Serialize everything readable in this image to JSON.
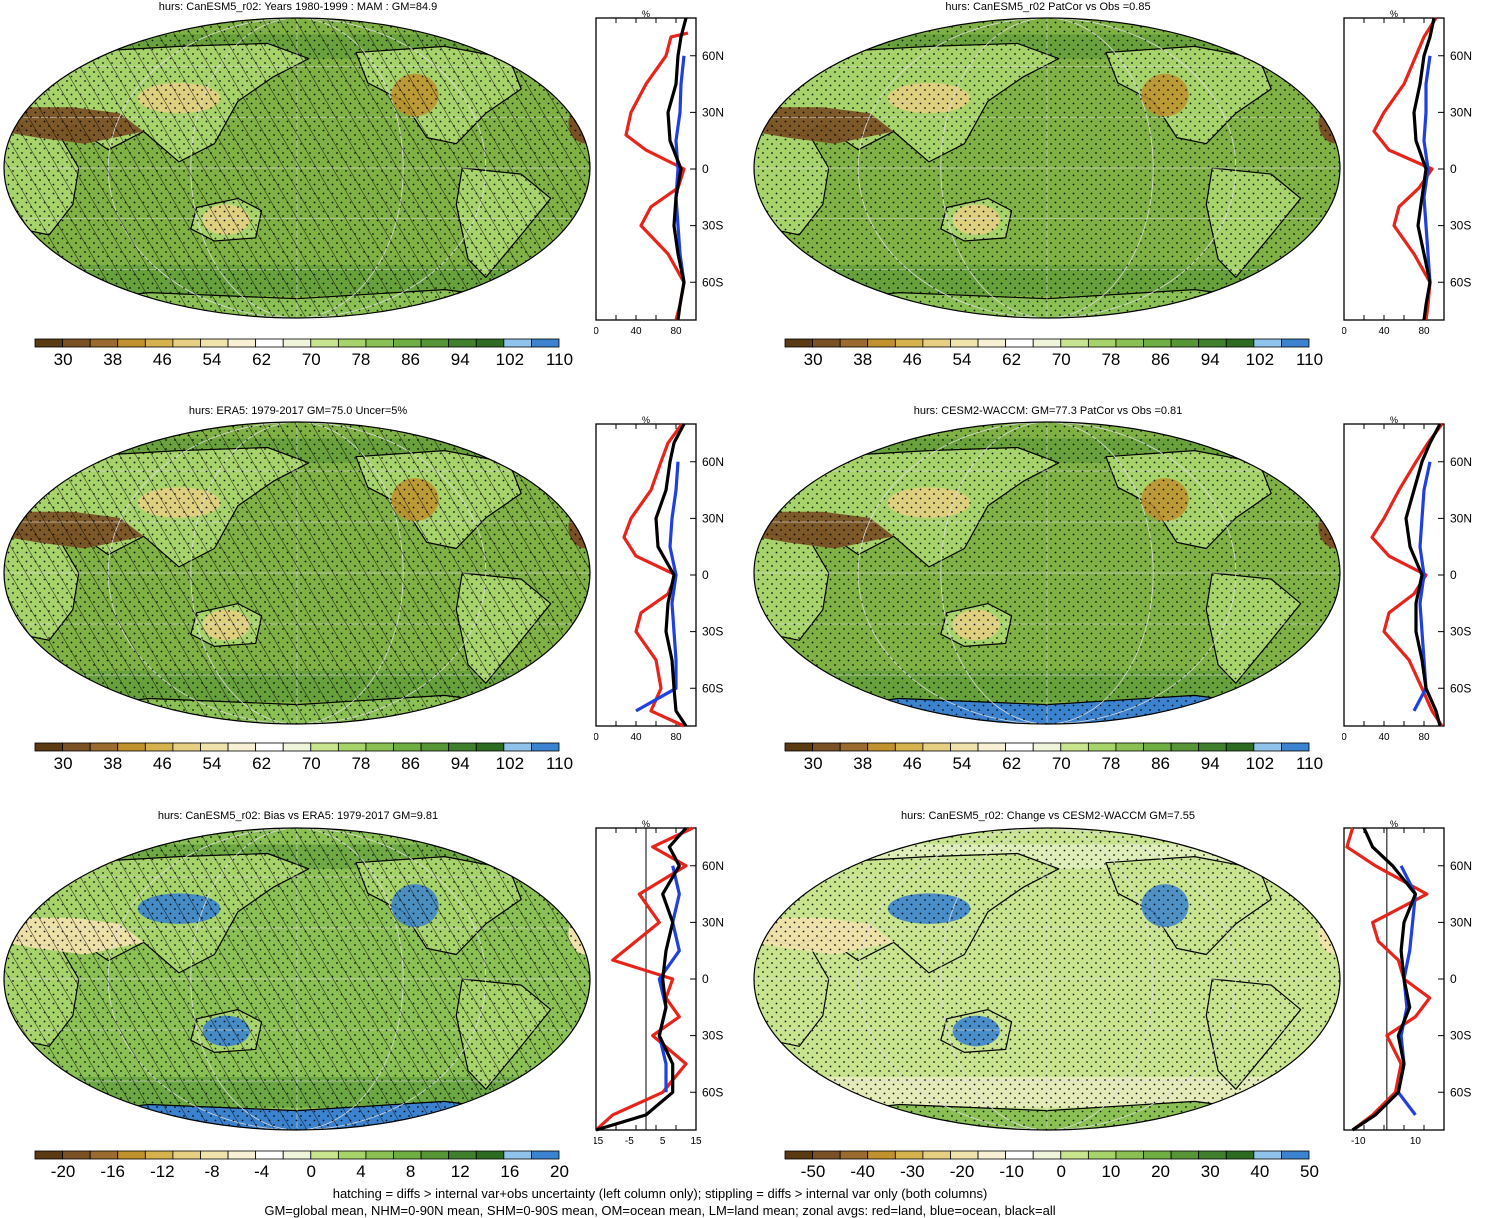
{
  "palette_rh": [
    "#5a3a13",
    "#7a5125",
    "#9a6a2e",
    "#c0912d",
    "#d6b24f",
    "#e6cf83",
    "#f0e2ab",
    "#f7f0d4",
    "#ffffff",
    "#eef5da",
    "#c9e48f",
    "#a7d36b",
    "#8bc154",
    "#6fae43",
    "#579637",
    "#40802c",
    "#2d6a22",
    "#8fc3ec",
    "#3b83cf"
  ],
  "palette_diff": [
    "#5a3a13",
    "#7a5125",
    "#9a6a2e",
    "#c0912d",
    "#d6b24f",
    "#e6cf83",
    "#f0e2ab",
    "#f7f0d4",
    "#ffffff",
    "#eef5da",
    "#c9e48f",
    "#a7d36b",
    "#8bc154",
    "#6fae43",
    "#579637",
    "#40802c",
    "#2d6a22",
    "#8fc3ec",
    "#3b83cf"
  ],
  "colors": {
    "land": "#e8241a",
    "ocean": "#1f3fe0",
    "all": "#000000",
    "ocean_fill": "#7fb144",
    "desert": "#7a5125",
    "ice": "#4d93d6"
  },
  "zonal_axis": {
    "unit": "%",
    "lat_labels": [
      "60N",
      "30N",
      "0",
      "30S",
      "60S"
    ]
  },
  "panels": [
    {
      "id": "p1",
      "title": "hurs: CanESM5_r02: Years 1980-1999 : MAM : GM=84.9",
      "hatch": true,
      "stipple": true,
      "style": "clim",
      "cbar_labels": [
        "30",
        "38",
        "46",
        "54",
        "62",
        "70",
        "78",
        "86",
        "94",
        "102",
        "110"
      ],
      "zonal_ticks": [
        "0",
        "40",
        "80"
      ],
      "zonal_range": [
        0,
        100
      ],
      "land": [
        [
          72,
          92
        ],
        [
          70,
          75
        ],
        [
          60,
          70
        ],
        [
          45,
          50
        ],
        [
          30,
          35
        ],
        [
          18,
          30
        ],
        [
          10,
          50
        ],
        [
          0,
          88
        ],
        [
          -10,
          82
        ],
        [
          -20,
          55
        ],
        [
          -30,
          45
        ],
        [
          -45,
          72
        ],
        [
          -60,
          88
        ],
        [
          -72,
          84
        ],
        [
          -80,
          80
        ]
      ],
      "ocean": [
        [
          60,
          88
        ],
        [
          45,
          85
        ],
        [
          30,
          84
        ],
        [
          15,
          80
        ],
        [
          0,
          82
        ],
        [
          -15,
          80
        ],
        [
          -30,
          82
        ],
        [
          -45,
          84
        ],
        [
          -60,
          88
        ]
      ],
      "all": [
        [
          80,
          90
        ],
        [
          70,
          85
        ],
        [
          60,
          82
        ],
        [
          45,
          80
        ],
        [
          30,
          72
        ],
        [
          15,
          74
        ],
        [
          0,
          85
        ],
        [
          -15,
          80
        ],
        [
          -30,
          78
        ],
        [
          -45,
          82
        ],
        [
          -60,
          88
        ],
        [
          -72,
          84
        ],
        [
          -80,
          82
        ]
      ]
    },
    {
      "id": "p2",
      "title": "hurs: CanESM5_r02 PatCor vs Obs =0.85",
      "hatch": false,
      "stipple": true,
      "style": "clim",
      "cbar_labels": [
        "30",
        "38",
        "46",
        "54",
        "62",
        "70",
        "78",
        "86",
        "94",
        "102",
        "110"
      ],
      "zonal_ticks": [
        "0",
        "40",
        "80"
      ],
      "zonal_range": [
        0,
        100
      ],
      "land": [
        [
          80,
          92
        ],
        [
          70,
          80
        ],
        [
          60,
          72
        ],
        [
          45,
          60
        ],
        [
          30,
          40
        ],
        [
          20,
          30
        ],
        [
          10,
          45
        ],
        [
          0,
          88
        ],
        [
          -10,
          75
        ],
        [
          -20,
          55
        ],
        [
          -30,
          50
        ],
        [
          -45,
          70
        ],
        [
          -60,
          86
        ],
        [
          -72,
          84
        ],
        [
          -80,
          82
        ]
      ],
      "ocean": [
        [
          60,
          86
        ],
        [
          45,
          82
        ],
        [
          30,
          82
        ],
        [
          15,
          80
        ],
        [
          0,
          84
        ],
        [
          -15,
          80
        ],
        [
          -30,
          82
        ],
        [
          -45,
          84
        ],
        [
          -60,
          86
        ]
      ],
      "all": [
        [
          80,
          90
        ],
        [
          70,
          86
        ],
        [
          60,
          80
        ],
        [
          45,
          76
        ],
        [
          30,
          70
        ],
        [
          15,
          72
        ],
        [
          0,
          82
        ],
        [
          -15,
          78
        ],
        [
          -30,
          74
        ],
        [
          -45,
          80
        ],
        [
          -60,
          86
        ],
        [
          -72,
          82
        ],
        [
          -80,
          80
        ]
      ]
    },
    {
      "id": "p3",
      "title": "hurs: ERA5: 1979-2017 GM=75.0 Uncer=5%",
      "hatch": true,
      "stipple": true,
      "style": "clim",
      "cbar_labels": [
        "30",
        "38",
        "46",
        "54",
        "62",
        "70",
        "78",
        "86",
        "94",
        "102",
        "110"
      ],
      "zonal_ticks": [
        "0",
        "40",
        "80"
      ],
      "zonal_range": [
        0,
        100
      ],
      "land": [
        [
          80,
          86
        ],
        [
          70,
          72
        ],
        [
          60,
          65
        ],
        [
          45,
          55
        ],
        [
          30,
          35
        ],
        [
          20,
          28
        ],
        [
          10,
          40
        ],
        [
          0,
          80
        ],
        [
          -10,
          72
        ],
        [
          -20,
          45
        ],
        [
          -30,
          40
        ],
        [
          -45,
          60
        ],
        [
          -60,
          65
        ],
        [
          -72,
          55
        ],
        [
          -80,
          88
        ]
      ],
      "ocean": [
        [
          60,
          82
        ],
        [
          45,
          80
        ],
        [
          30,
          76
        ],
        [
          15,
          74
        ],
        [
          0,
          80
        ],
        [
          -15,
          76
        ],
        [
          -30,
          78
        ],
        [
          -45,
          80
        ],
        [
          -60,
          80
        ],
        [
          -72,
          40
        ]
      ],
      "all": [
        [
          80,
          88
        ],
        [
          70,
          78
        ],
        [
          60,
          74
        ],
        [
          45,
          70
        ],
        [
          30,
          60
        ],
        [
          15,
          62
        ],
        [
          0,
          78
        ],
        [
          -15,
          72
        ],
        [
          -30,
          70
        ],
        [
          -45,
          76
        ],
        [
          -60,
          78
        ],
        [
          -72,
          80
        ],
        [
          -80,
          90
        ]
      ]
    },
    {
      "id": "p4",
      "title": "hurs: CESM2-WACCM: GM=77.3 PatCor vs Obs =0.81",
      "hatch": false,
      "stipple": true,
      "style": "clim",
      "cbar_labels": [
        "30",
        "38",
        "46",
        "54",
        "62",
        "70",
        "78",
        "86",
        "94",
        "102",
        "110"
      ],
      "zonal_ticks": [
        "0",
        "40",
        "80"
      ],
      "zonal_range": [
        0,
        100
      ],
      "land": [
        [
          80,
          98
        ],
        [
          70,
          84
        ],
        [
          60,
          72
        ],
        [
          45,
          55
        ],
        [
          30,
          40
        ],
        [
          20,
          28
        ],
        [
          10,
          45
        ],
        [
          0,
          82
        ],
        [
          -10,
          70
        ],
        [
          -20,
          45
        ],
        [
          -30,
          40
        ],
        [
          -45,
          65
        ],
        [
          -60,
          78
        ],
        [
          -72,
          88
        ],
        [
          -80,
          98
        ]
      ],
      "ocean": [
        [
          60,
          86
        ],
        [
          45,
          80
        ],
        [
          30,
          78
        ],
        [
          15,
          76
        ],
        [
          0,
          80
        ],
        [
          -15,
          76
        ],
        [
          -30,
          78
        ],
        [
          -45,
          80
        ],
        [
          -60,
          82
        ],
        [
          -72,
          70
        ]
      ],
      "all": [
        [
          80,
          96
        ],
        [
          70,
          86
        ],
        [
          60,
          78
        ],
        [
          45,
          70
        ],
        [
          30,
          62
        ],
        [
          15,
          66
        ],
        [
          0,
          78
        ],
        [
          -15,
          72
        ],
        [
          -30,
          72
        ],
        [
          -45,
          78
        ],
        [
          -60,
          82
        ],
        [
          -72,
          92
        ],
        [
          -80,
          96
        ]
      ]
    },
    {
      "id": "p5",
      "title": "hurs: CanESM5_r02: Bias vs ERA5: 1979-2017 GM=9.81",
      "hatch": true,
      "stipple": true,
      "style": "bias",
      "cbar_labels": [
        "-20",
        "-16",
        "-12",
        "-8",
        "-4",
        "0",
        "4",
        "8",
        "12",
        "16",
        "20"
      ],
      "zonal_ticks": [
        "-15",
        "-5",
        "5",
        "15"
      ],
      "zonal_range": [
        -15,
        15
      ],
      "land": [
        [
          80,
          14
        ],
        [
          70,
          2
        ],
        [
          60,
          12
        ],
        [
          45,
          -2
        ],
        [
          30,
          4
        ],
        [
          20,
          -3
        ],
        [
          10,
          -10
        ],
        [
          0,
          8
        ],
        [
          -10,
          6
        ],
        [
          -20,
          10
        ],
        [
          -30,
          2
        ],
        [
          -45,
          12
        ],
        [
          -60,
          5
        ],
        [
          -72,
          -10
        ],
        [
          -80,
          -15
        ]
      ],
      "ocean": [
        [
          60,
          8
        ],
        [
          45,
          10
        ],
        [
          30,
          8
        ],
        [
          15,
          10
        ],
        [
          0,
          4
        ],
        [
          -15,
          6
        ],
        [
          -30,
          4
        ],
        [
          -45,
          6
        ],
        [
          -60,
          6
        ]
      ],
      "all": [
        [
          80,
          12
        ],
        [
          70,
          7
        ],
        [
          60,
          10
        ],
        [
          45,
          5
        ],
        [
          30,
          8
        ],
        [
          15,
          6
        ],
        [
          0,
          5
        ],
        [
          -15,
          6
        ],
        [
          -30,
          4
        ],
        [
          -45,
          8
        ],
        [
          -60,
          8
        ],
        [
          -72,
          0
        ],
        [
          -80,
          -15
        ]
      ]
    },
    {
      "id": "p6",
      "title": "hurs: CanESM5_r02: Change vs CESM2-WACCM GM=7.55",
      "hatch": false,
      "stipple": true,
      "style": "bias",
      "cbar_labels": [
        "-50",
        "-40",
        "-30",
        "-20",
        "-10",
        "0",
        "10",
        "20",
        "30",
        "40",
        "50"
      ],
      "zonal_ticks": [
        "-10",
        "10"
      ],
      "zonal_range": [
        -15,
        20
      ],
      "land": [
        [
          80,
          -12
        ],
        [
          70,
          -14
        ],
        [
          60,
          -4
        ],
        [
          45,
          14
        ],
        [
          30,
          -5
        ],
        [
          20,
          -3
        ],
        [
          10,
          4
        ],
        [
          0,
          6
        ],
        [
          -10,
          15
        ],
        [
          -20,
          10
        ],
        [
          -30,
          0
        ],
        [
          -45,
          5
        ],
        [
          -60,
          3
        ],
        [
          -72,
          -5
        ],
        [
          -80,
          -12
        ]
      ],
      "ocean": [
        [
          60,
          5
        ],
        [
          45,
          10
        ],
        [
          30,
          9
        ],
        [
          15,
          8
        ],
        [
          0,
          6
        ],
        [
          -15,
          7
        ],
        [
          -30,
          5
        ],
        [
          -45,
          6
        ],
        [
          -60,
          4
        ],
        [
          -72,
          10
        ]
      ],
      "all": [
        [
          80,
          -8
        ],
        [
          70,
          -5
        ],
        [
          60,
          2
        ],
        [
          45,
          10
        ],
        [
          30,
          6
        ],
        [
          15,
          5
        ],
        [
          0,
          6
        ],
        [
          -15,
          8
        ],
        [
          -30,
          4
        ],
        [
          -45,
          6
        ],
        [
          -60,
          4
        ],
        [
          -72,
          -4
        ],
        [
          -80,
          -12
        ]
      ]
    }
  ],
  "footnotes": [
    "hatching = diffs > internal var+obs uncertainty (left column only); stippling = diffs > internal var only (both columns)",
    "GM=global mean, NHM=0-90N mean, SHM=0-90S mean, OM=ocean mean, LM=land mean; zonal avgs: red=land, blue=ocean, black=all"
  ]
}
